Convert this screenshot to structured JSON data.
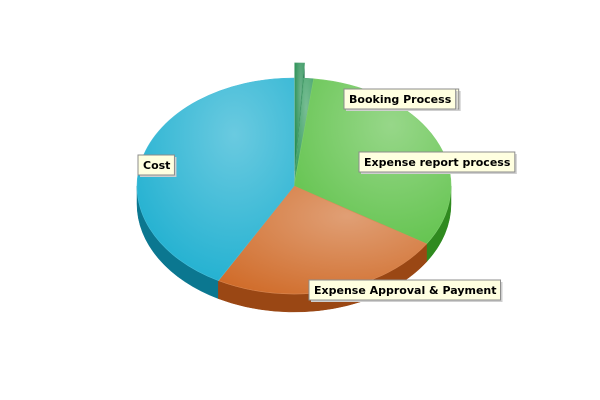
{
  "chart_data": {
    "type": "pie",
    "title": "",
    "style": "3d-exploded",
    "legend": "none",
    "slices": [
      {
        "label": "Booking Process",
        "value": 1,
        "color": "#1e8a4c",
        "side_color": "#10603a",
        "exploded": true
      },
      {
        "label": "Booking Process",
        "value": 1,
        "color": "#2f9a5a",
        "side_color": "#1a6b3c",
        "exploded": false
      },
      {
        "label": "Expense report process",
        "value": 32,
        "color": "#5fc24a",
        "side_color": "#2f8a1f",
        "exploded": false
      },
      {
        "label": "Expense Approval & Payment",
        "value": 24,
        "color": "#d06c2a",
        "side_color": "#9a4714",
        "exploded": false
      },
      {
        "label": "Cost",
        "value": 42,
        "color": "#1aaecf",
        "side_color": "#0b7790",
        "exploded": false
      }
    ]
  }
}
